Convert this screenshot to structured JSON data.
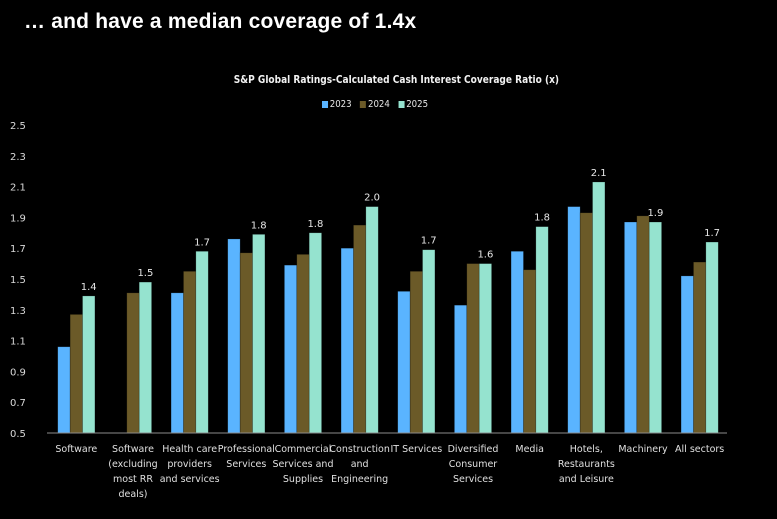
{
  "headline": "… and have a median coverage of 1.4x",
  "chart_data": {
    "type": "bar",
    "title": "S&P Global Ratings-Calculated Cash Interest Coverage Ratio (x)",
    "xlabel": "",
    "ylabel": "",
    "ylim": [
      0.5,
      2.5
    ],
    "yticks": [
      "0.5",
      "0.7",
      "0.9",
      "1.1",
      "1.3",
      "1.5",
      "1.7",
      "1.9",
      "2.1",
      "2.3",
      "2.5"
    ],
    "grid": false,
    "legend_position": "top-center",
    "categories": [
      [
        "Software"
      ],
      [
        "Software",
        "(excluding",
        "most RR",
        "deals)"
      ],
      [
        "Health care",
        "providers",
        "and services"
      ],
      [
        "Professional",
        "Services"
      ],
      [
        "Commercial",
        "Services and",
        "Supplies"
      ],
      [
        "Construction",
        "and",
        "Engineering"
      ],
      [
        "IT Services"
      ],
      [
        "Diversified",
        "Consumer",
        "Services"
      ],
      [
        "Media"
      ],
      [
        "Hotels,",
        "Restaurants",
        "and Leisure"
      ],
      [
        "Machinery"
      ],
      [
        "All sectors"
      ]
    ],
    "series": [
      {
        "name": "2023",
        "color": "#5ab4ff",
        "values": [
          1.06,
          null,
          1.41,
          1.76,
          1.59,
          1.7,
          1.42,
          1.33,
          1.68,
          1.97,
          1.87,
          1.52
        ]
      },
      {
        "name": "2024",
        "color": "#6b5a28",
        "values": [
          1.27,
          1.41,
          1.55,
          1.67,
          1.66,
          1.85,
          1.55,
          1.6,
          1.56,
          1.93,
          1.91,
          1.61
        ]
      },
      {
        "name": "2025",
        "color": "#95e3cf",
        "values": [
          1.39,
          1.48,
          1.68,
          1.79,
          1.8,
          1.97,
          1.69,
          1.6,
          1.84,
          2.13,
          1.87,
          1.74
        ]
      }
    ],
    "data_labels": {
      "series": "2025",
      "values": [
        "1.4",
        "1.5",
        "1.7",
        "1.8",
        "1.8",
        "2.0",
        "1.7",
        "1.6",
        "1.8",
        "2.1",
        "1.9",
        "1.7"
      ]
    }
  }
}
